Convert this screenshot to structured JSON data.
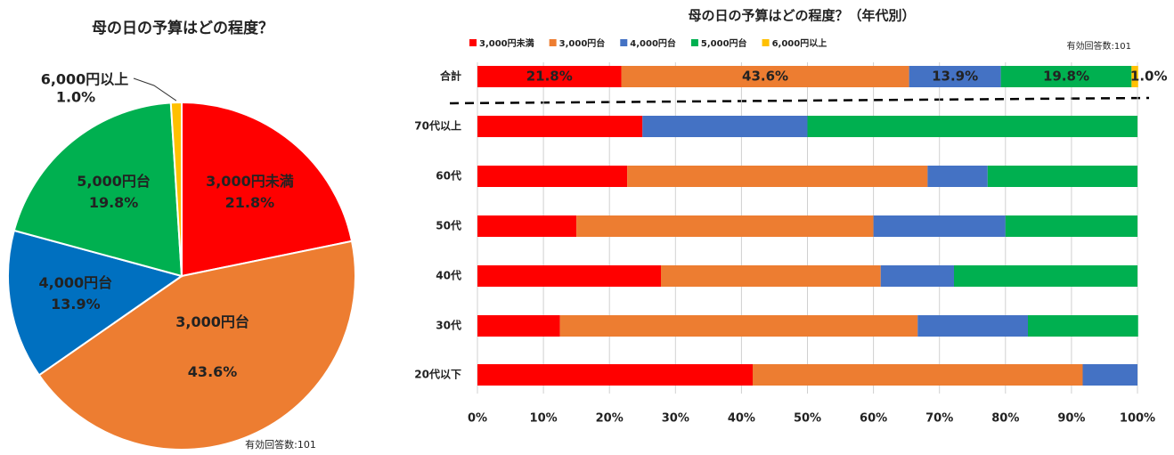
{
  "chart_data": [
    {
      "type": "pie",
      "title": "母の日の予算はどの程度？",
      "categories": [
        "3,000円未満",
        "3,000円台",
        "4,000円台",
        "5,000円台",
        "6,000円以上"
      ],
      "values": [
        21.8,
        43.6,
        13.9,
        19.8,
        1.0
      ],
      "value_labels": [
        "21.8%",
        "43.6%",
        "13.9%",
        "19.8%",
        "1.0%"
      ],
      "colors": [
        "#ff0000",
        "#ed7d31",
        "#0070c0",
        "#00b050",
        "#ffc000"
      ],
      "note": "有効回答数:101"
    },
    {
      "type": "stacked-barh",
      "title": "母の日の予算はどの程度？（年代別）",
      "categories": [
        "合計",
        "70代以上",
        "60代",
        "50代",
        "40代",
        "30代",
        "20代以下"
      ],
      "series": [
        {
          "name": "3,000円未満",
          "color": "#ff0000",
          "values": [
            21.8,
            25,
            22.7,
            15,
            27.8,
            12.5,
            41.7
          ],
          "value_labels": [
            "21.8%",
            null,
            null,
            null,
            null,
            null,
            null
          ]
        },
        {
          "name": "3,000円台",
          "color": "#ed7d31",
          "values": [
            43.6,
            0,
            45.5,
            45,
            33.3,
            54.2,
            50
          ],
          "value_labels": [
            "43.6%",
            null,
            null,
            null,
            null,
            null,
            null
          ]
        },
        {
          "name": "4,000円台",
          "color": "#4472c4",
          "values": [
            13.9,
            25,
            9.1,
            20,
            11.1,
            16.7,
            8.3
          ],
          "value_labels": [
            "13.9%",
            null,
            null,
            null,
            null,
            null,
            null
          ]
        },
        {
          "name": "5,000円台",
          "color": "#00b050",
          "values": [
            19.8,
            50,
            22.7,
            20,
            27.8,
            16.7,
            0
          ],
          "value_labels": [
            "19.8%",
            null,
            null,
            null,
            null,
            null,
            null
          ]
        },
        {
          "name": "6,000円以上",
          "color": "#ffc000",
          "values": [
            1.0,
            0,
            0,
            0,
            0,
            0,
            0
          ],
          "value_labels": [
            "1.0%",
            null,
            null,
            null,
            null,
            null,
            null
          ]
        }
      ],
      "xlim": [
        0,
        100
      ],
      "xticks": [
        {
          "value": 0,
          "label": "0%"
        },
        {
          "value": 10,
          "label": "10%"
        },
        {
          "value": 20,
          "label": "20%"
        },
        {
          "value": 30,
          "label": "30%"
        },
        {
          "value": 40,
          "label": "40%"
        },
        {
          "value": 50,
          "label": "50%"
        },
        {
          "value": 60,
          "label": "60%"
        },
        {
          "value": 70,
          "label": "70%"
        },
        {
          "value": 80,
          "label": "80%"
        },
        {
          "value": 90,
          "label": "90%"
        },
        {
          "value": 100,
          "label": "100%"
        }
      ],
      "grid": true,
      "note": "有効回答数:101"
    }
  ]
}
